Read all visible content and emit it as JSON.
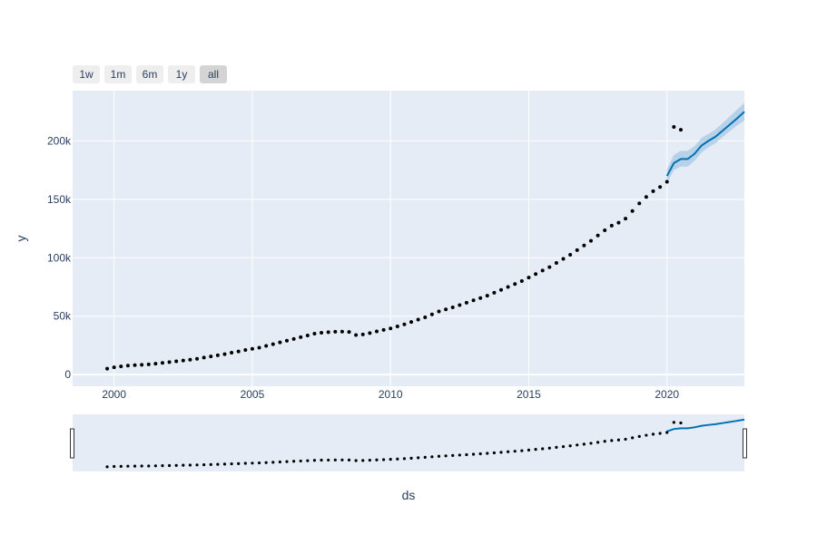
{
  "range_selector": {
    "buttons": [
      {
        "label": "1w",
        "active": false
      },
      {
        "label": "1m",
        "active": false
      },
      {
        "label": "6m",
        "active": false
      },
      {
        "label": "1y",
        "active": false
      },
      {
        "label": "all",
        "active": true
      }
    ]
  },
  "colors": {
    "plot_bg": "#e5ecf6",
    "grid": "#ffffff",
    "forecast_line": "#0072b2",
    "forecast_band": "#a6c8e3",
    "points": "#000000",
    "button_bg": "#eeeeee",
    "button_active_bg": "#d4d4d4",
    "text": "#2a3f5f"
  },
  "chart_data": {
    "type": "scatter",
    "title": "",
    "xlabel": "ds",
    "ylabel": "y",
    "xlim": [
      1998.5,
      2022.8
    ],
    "ylim": [
      -10000,
      243000
    ],
    "grid": true,
    "x_ticks": [
      2000,
      2005,
      2010,
      2015,
      2020
    ],
    "x_tick_labels": [
      "2000",
      "2005",
      "2010",
      "2015",
      "2020"
    ],
    "y_ticks": [
      0,
      50000,
      100000,
      150000,
      200000
    ],
    "y_tick_labels": [
      "0",
      "50k",
      "100k",
      "150k",
      "200k"
    ],
    "rangeslider": true,
    "series": [
      {
        "kind": "observed",
        "x": [
          1999.75,
          2000.0,
          2000.25,
          2000.5,
          2000.75,
          2001.0,
          2001.25,
          2001.5,
          2001.75,
          2002.0,
          2002.25,
          2002.5,
          2002.75,
          2003.0,
          2003.25,
          2003.5,
          2003.75,
          2004.0,
          2004.25,
          2004.5,
          2004.75,
          2005.0,
          2005.25,
          2005.5,
          2005.75,
          2006.0,
          2006.25,
          2006.5,
          2006.75,
          2007.0,
          2007.25,
          2007.5,
          2007.75,
          2008.0,
          2008.25,
          2008.5,
          2008.75,
          2009.0,
          2009.25,
          2009.5,
          2009.75,
          2010.0,
          2010.25,
          2010.5,
          2010.75,
          2011.0,
          2011.25,
          2011.5,
          2011.75,
          2012.0,
          2012.25,
          2012.5,
          2012.75,
          2013.0,
          2013.25,
          2013.5,
          2013.75,
          2014.0,
          2014.25,
          2014.5,
          2014.75,
          2015.0,
          2015.25,
          2015.5,
          2015.75,
          2016.0,
          2016.25,
          2016.5,
          2016.75,
          2017.0,
          2017.25,
          2017.5,
          2017.75,
          2018.0,
          2018.25,
          2018.5,
          2018.75,
          2019.0,
          2019.25,
          2019.5,
          2019.75,
          2020.0,
          2020.25,
          2020.5
        ],
        "y": [
          5000,
          6200,
          7000,
          7700,
          8000,
          8300,
          8700,
          9300,
          10000,
          10700,
          11300,
          12000,
          12700,
          13500,
          14500,
          15500,
          16500,
          17500,
          18700,
          19800,
          21000,
          22000,
          23000,
          24500,
          26000,
          27500,
          29000,
          30500,
          32000,
          33500,
          35000,
          35800,
          36300,
          36700,
          36800,
          36500,
          33800,
          34300,
          35500,
          37000,
          38200,
          39500,
          41200,
          43000,
          45000,
          47000,
          49000,
          51500,
          54000,
          55800,
          57500,
          59500,
          61500,
          63500,
          65500,
          67500,
          70000,
          72500,
          75000,
          77500,
          80000,
          83000,
          86000,
          89000,
          92000,
          95500,
          99000,
          102500,
          106500,
          110500,
          114500,
          119000,
          123500,
          127500,
          130000,
          133500,
          140000,
          146500,
          152000,
          157000,
          160500,
          165000,
          212000,
          209500
        ]
      },
      {
        "kind": "forecast",
        "x": [
          2020.0,
          2020.25,
          2020.5,
          2020.75,
          2021.0,
          2021.25,
          2021.5,
          2021.75,
          2022.0,
          2022.25,
          2022.5,
          2022.8
        ],
        "y": [
          170000,
          181000,
          184500,
          184500,
          189000,
          196000,
          200000,
          203500,
          208500,
          213500,
          218500,
          225000
        ],
        "lower": [
          164000,
          175000,
          178000,
          178000,
          183000,
          190000,
          194500,
          198000,
          203000,
          208000,
          212500,
          217500
        ],
        "upper": [
          176000,
          188000,
          191500,
          191500,
          195500,
          202500,
          206000,
          209500,
          215000,
          220500,
          226000,
          232500
        ]
      }
    ]
  }
}
